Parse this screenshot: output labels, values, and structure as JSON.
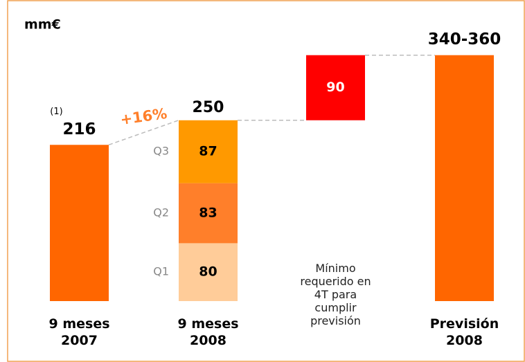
{
  "chart_data": {
    "type": "waterfall",
    "unit_label": "mm€",
    "growth_label": "+16%",
    "growth_color": "#ff7f2a",
    "bars": [
      {
        "category": "9 meses 2007",
        "value": 216,
        "color": "#ff6600",
        "note": "(1)"
      },
      {
        "category": "9 meses 2008",
        "value": 250,
        "segments": [
          {
            "name": "Q1",
            "value": 80,
            "color": "#ffcc99"
          },
          {
            "name": "Q2",
            "value": 83,
            "color": "#ff7f2a"
          },
          {
            "name": "Q3",
            "value": 87,
            "color": "#ff9900"
          }
        ]
      },
      {
        "category": "Mínimo requerido en 4T para cumplir previsión",
        "value": 90,
        "color": "#ff0000"
      },
      {
        "category": "Previsión 2008",
        "value": 340,
        "value_label": "340-360",
        "color": "#ff6600"
      }
    ]
  }
}
